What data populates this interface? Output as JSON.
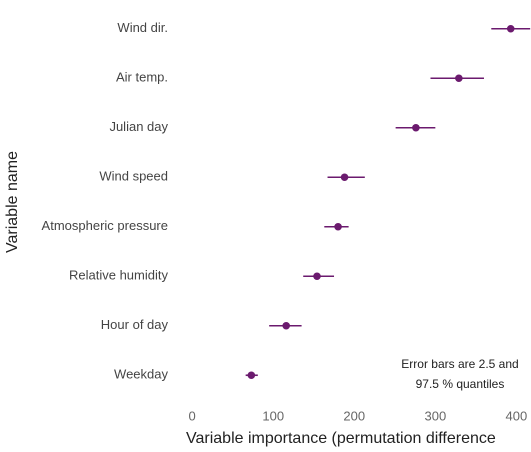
{
  "chart_data": {
    "type": "dotwhisker",
    "x_label": "Variable importance (permutation difference",
    "y_label": "Variable name",
    "annotation": [
      "Error bars are 2.5 and",
      "97.5 % quantiles"
    ],
    "categories": [
      "Wind dir.",
      "Air temp.",
      "Julian day",
      "Wind speed",
      "Atmospheric pressure",
      "Relative humidity",
      "Hour of day",
      "Weekday"
    ],
    "values": [
      393,
      329,
      276,
      188,
      180,
      154,
      116,
      73
    ],
    "lower": [
      369,
      294,
      251,
      167,
      163,
      137,
      95,
      66
    ],
    "upper": [
      417,
      360,
      300,
      213,
      193,
      175,
      135,
      81
    ],
    "color": "#6b1a6e",
    "xlim": [
      -15,
      418
    ],
    "xticks": [
      0,
      100,
      200,
      300,
      400
    ]
  }
}
